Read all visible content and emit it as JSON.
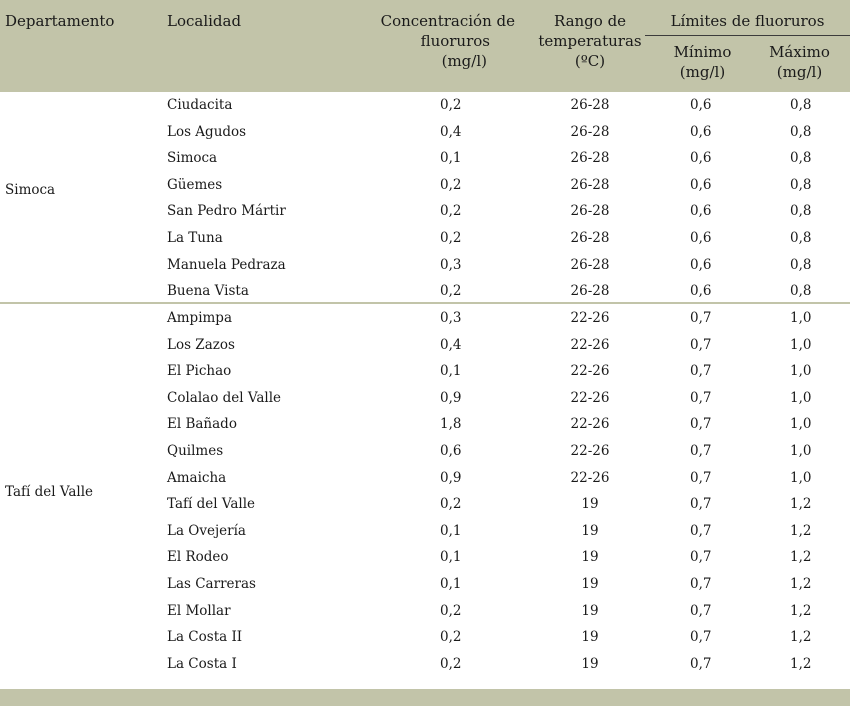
{
  "table": {
    "headers": {
      "departamento": "Departamento",
      "localidad": "Localidad",
      "concentracion_l1": "Concentración de",
      "concentracion_l2": "fluoruros",
      "concentracion_l3": "(mg/l)",
      "rango_l1": "Rango de",
      "rango_l2": "temperaturas",
      "rango_l3": "(ºC)",
      "limites": "Límites de fluoruros",
      "minimo_l1": "Mínimo",
      "minimo_l2": "(mg/l)",
      "maximo_l1": "Máximo",
      "maximo_l2": "(mg/l)"
    },
    "groups": [
      {
        "departamento": "Simoca",
        "rows": [
          {
            "localidad": "Ciudacita",
            "concentracion": "0,2",
            "rango": "26-28",
            "minimo": "0,6",
            "maximo": "0,8"
          },
          {
            "localidad": "Los Agudos",
            "concentracion": "0,4",
            "rango": "26-28",
            "minimo": "0,6",
            "maximo": "0,8"
          },
          {
            "localidad": "Simoca",
            "concentracion": "0,1",
            "rango": "26-28",
            "minimo": "0,6",
            "maximo": "0,8"
          },
          {
            "localidad": "Güemes",
            "concentracion": "0,2",
            "rango": "26-28",
            "minimo": "0,6",
            "maximo": "0,8"
          },
          {
            "localidad": "San Pedro Mártir",
            "concentracion": "0,2",
            "rango": "26-28",
            "minimo": "0,6",
            "maximo": "0,8"
          },
          {
            "localidad": "La Tuna",
            "concentracion": "0,2",
            "rango": "26-28",
            "minimo": "0,6",
            "maximo": "0,8"
          },
          {
            "localidad": "Manuela Pedraza",
            "concentracion": "0,3",
            "rango": "26-28",
            "minimo": "0,6",
            "maximo": "0,8"
          },
          {
            "localidad": "Buena Vista",
            "concentracion": "0,2",
            "rango": "26-28",
            "minimo": "0,6",
            "maximo": "0,8"
          }
        ]
      },
      {
        "departamento": "Tafí del Valle",
        "rows": [
          {
            "localidad": "Ampimpa",
            "concentracion": "0,3",
            "rango": "22-26",
            "minimo": "0,7",
            "maximo": "1,0"
          },
          {
            "localidad": "Los Zazos",
            "concentracion": "0,4",
            "rango": "22-26",
            "minimo": "0,7",
            "maximo": "1,0"
          },
          {
            "localidad": "El Pichao",
            "concentracion": "0,1",
            "rango": "22-26",
            "minimo": "0,7",
            "maximo": "1,0"
          },
          {
            "localidad": "Colalao del Valle",
            "concentracion": "0,9",
            "rango": "22-26",
            "minimo": "0,7",
            "maximo": "1,0"
          },
          {
            "localidad": "El Bañado",
            "concentracion": "1,8",
            "rango": "22-26",
            "minimo": "0,7",
            "maximo": "1,0"
          },
          {
            "localidad": "Quilmes",
            "concentracion": "0,6",
            "rango": "22-26",
            "minimo": "0,7",
            "maximo": "1,0"
          },
          {
            "localidad": "Amaicha",
            "concentracion": "0,9",
            "rango": "22-26",
            "minimo": "0,7",
            "maximo": "1,0"
          },
          {
            "localidad": "Tafí del Valle",
            "concentracion": "0,2",
            "rango": "19",
            "minimo": "0,7",
            "maximo": "1,2"
          },
          {
            "localidad": "La Ovejería",
            "concentracion": "0,1",
            "rango": "19",
            "minimo": "0,7",
            "maximo": "1,2"
          },
          {
            "localidad": "El Rodeo",
            "concentracion": "0,1",
            "rango": "19",
            "minimo": "0,7",
            "maximo": "1,2"
          },
          {
            "localidad": "Las Carreras",
            "concentracion": "0,1",
            "rango": "19",
            "minimo": "0,7",
            "maximo": "1,2"
          },
          {
            "localidad": "El Mollar",
            "concentracion": "0,2",
            "rango": "19",
            "minimo": "0,7",
            "maximo": "1,2"
          },
          {
            "localidad": "La Costa II",
            "concentracion": "0,2",
            "rango": "19",
            "minimo": "0,7",
            "maximo": "1,2"
          },
          {
            "localidad": "La Costa I",
            "concentracion": "0,2",
            "rango": "19",
            "minimo": "0,7",
            "maximo": "1,2"
          }
        ]
      }
    ]
  },
  "colors": {
    "header_bg": "#c2c4a9",
    "text": "#1a1a1a"
  }
}
